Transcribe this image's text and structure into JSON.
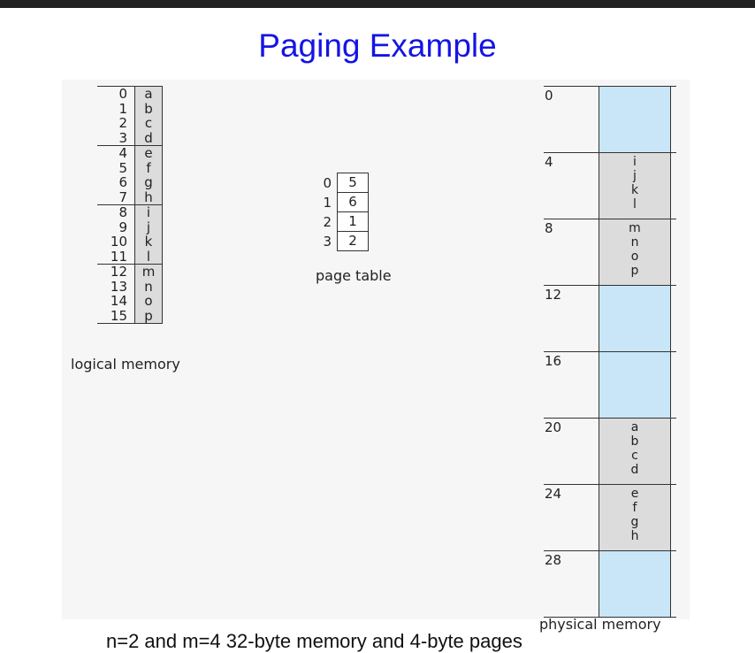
{
  "title": "Paging Example",
  "logical_memory": {
    "caption": "logical memory",
    "entries": [
      {
        "index": "0",
        "value": "a"
      },
      {
        "index": "1",
        "value": "b"
      },
      {
        "index": "2",
        "value": "c"
      },
      {
        "index": "3",
        "value": "d"
      },
      {
        "index": "4",
        "value": "e"
      },
      {
        "index": "5",
        "value": "f"
      },
      {
        "index": "6",
        "value": "g"
      },
      {
        "index": "7",
        "value": "h"
      },
      {
        "index": "8",
        "value": "i"
      },
      {
        "index": "9",
        "value": "j"
      },
      {
        "index": "10",
        "value": "k"
      },
      {
        "index": "11",
        "value": "l"
      },
      {
        "index": "12",
        "value": "m"
      },
      {
        "index": "13",
        "value": "n"
      },
      {
        "index": "14",
        "value": "o"
      },
      {
        "index": "15",
        "value": "p"
      }
    ]
  },
  "page_table": {
    "caption": "page table",
    "rows": [
      {
        "page": "0",
        "frame": "5"
      },
      {
        "page": "1",
        "frame": "6"
      },
      {
        "page": "2",
        "frame": "1"
      },
      {
        "page": "3",
        "frame": "2"
      }
    ]
  },
  "physical_memory": {
    "caption": "physical memory",
    "frames": [
      {
        "address": "0",
        "contents": []
      },
      {
        "address": "4",
        "contents": [
          "i",
          "j",
          "k",
          "l"
        ]
      },
      {
        "address": "8",
        "contents": [
          "m",
          "n",
          "o",
          "p"
        ]
      },
      {
        "address": "12",
        "contents": []
      },
      {
        "address": "16",
        "contents": []
      },
      {
        "address": "20",
        "contents": [
          "a",
          "b",
          "c",
          "d"
        ]
      },
      {
        "address": "24",
        "contents": [
          "e",
          "f",
          "g",
          "h"
        ]
      },
      {
        "address": "28",
        "contents": []
      }
    ]
  },
  "footer_text": "n=2 and m=4  32-byte memory and 4-byte pages",
  "colors": {
    "title": "#1414e6",
    "free_frame": "#c8e6f8",
    "used_cell": "#dcdcdc"
  }
}
